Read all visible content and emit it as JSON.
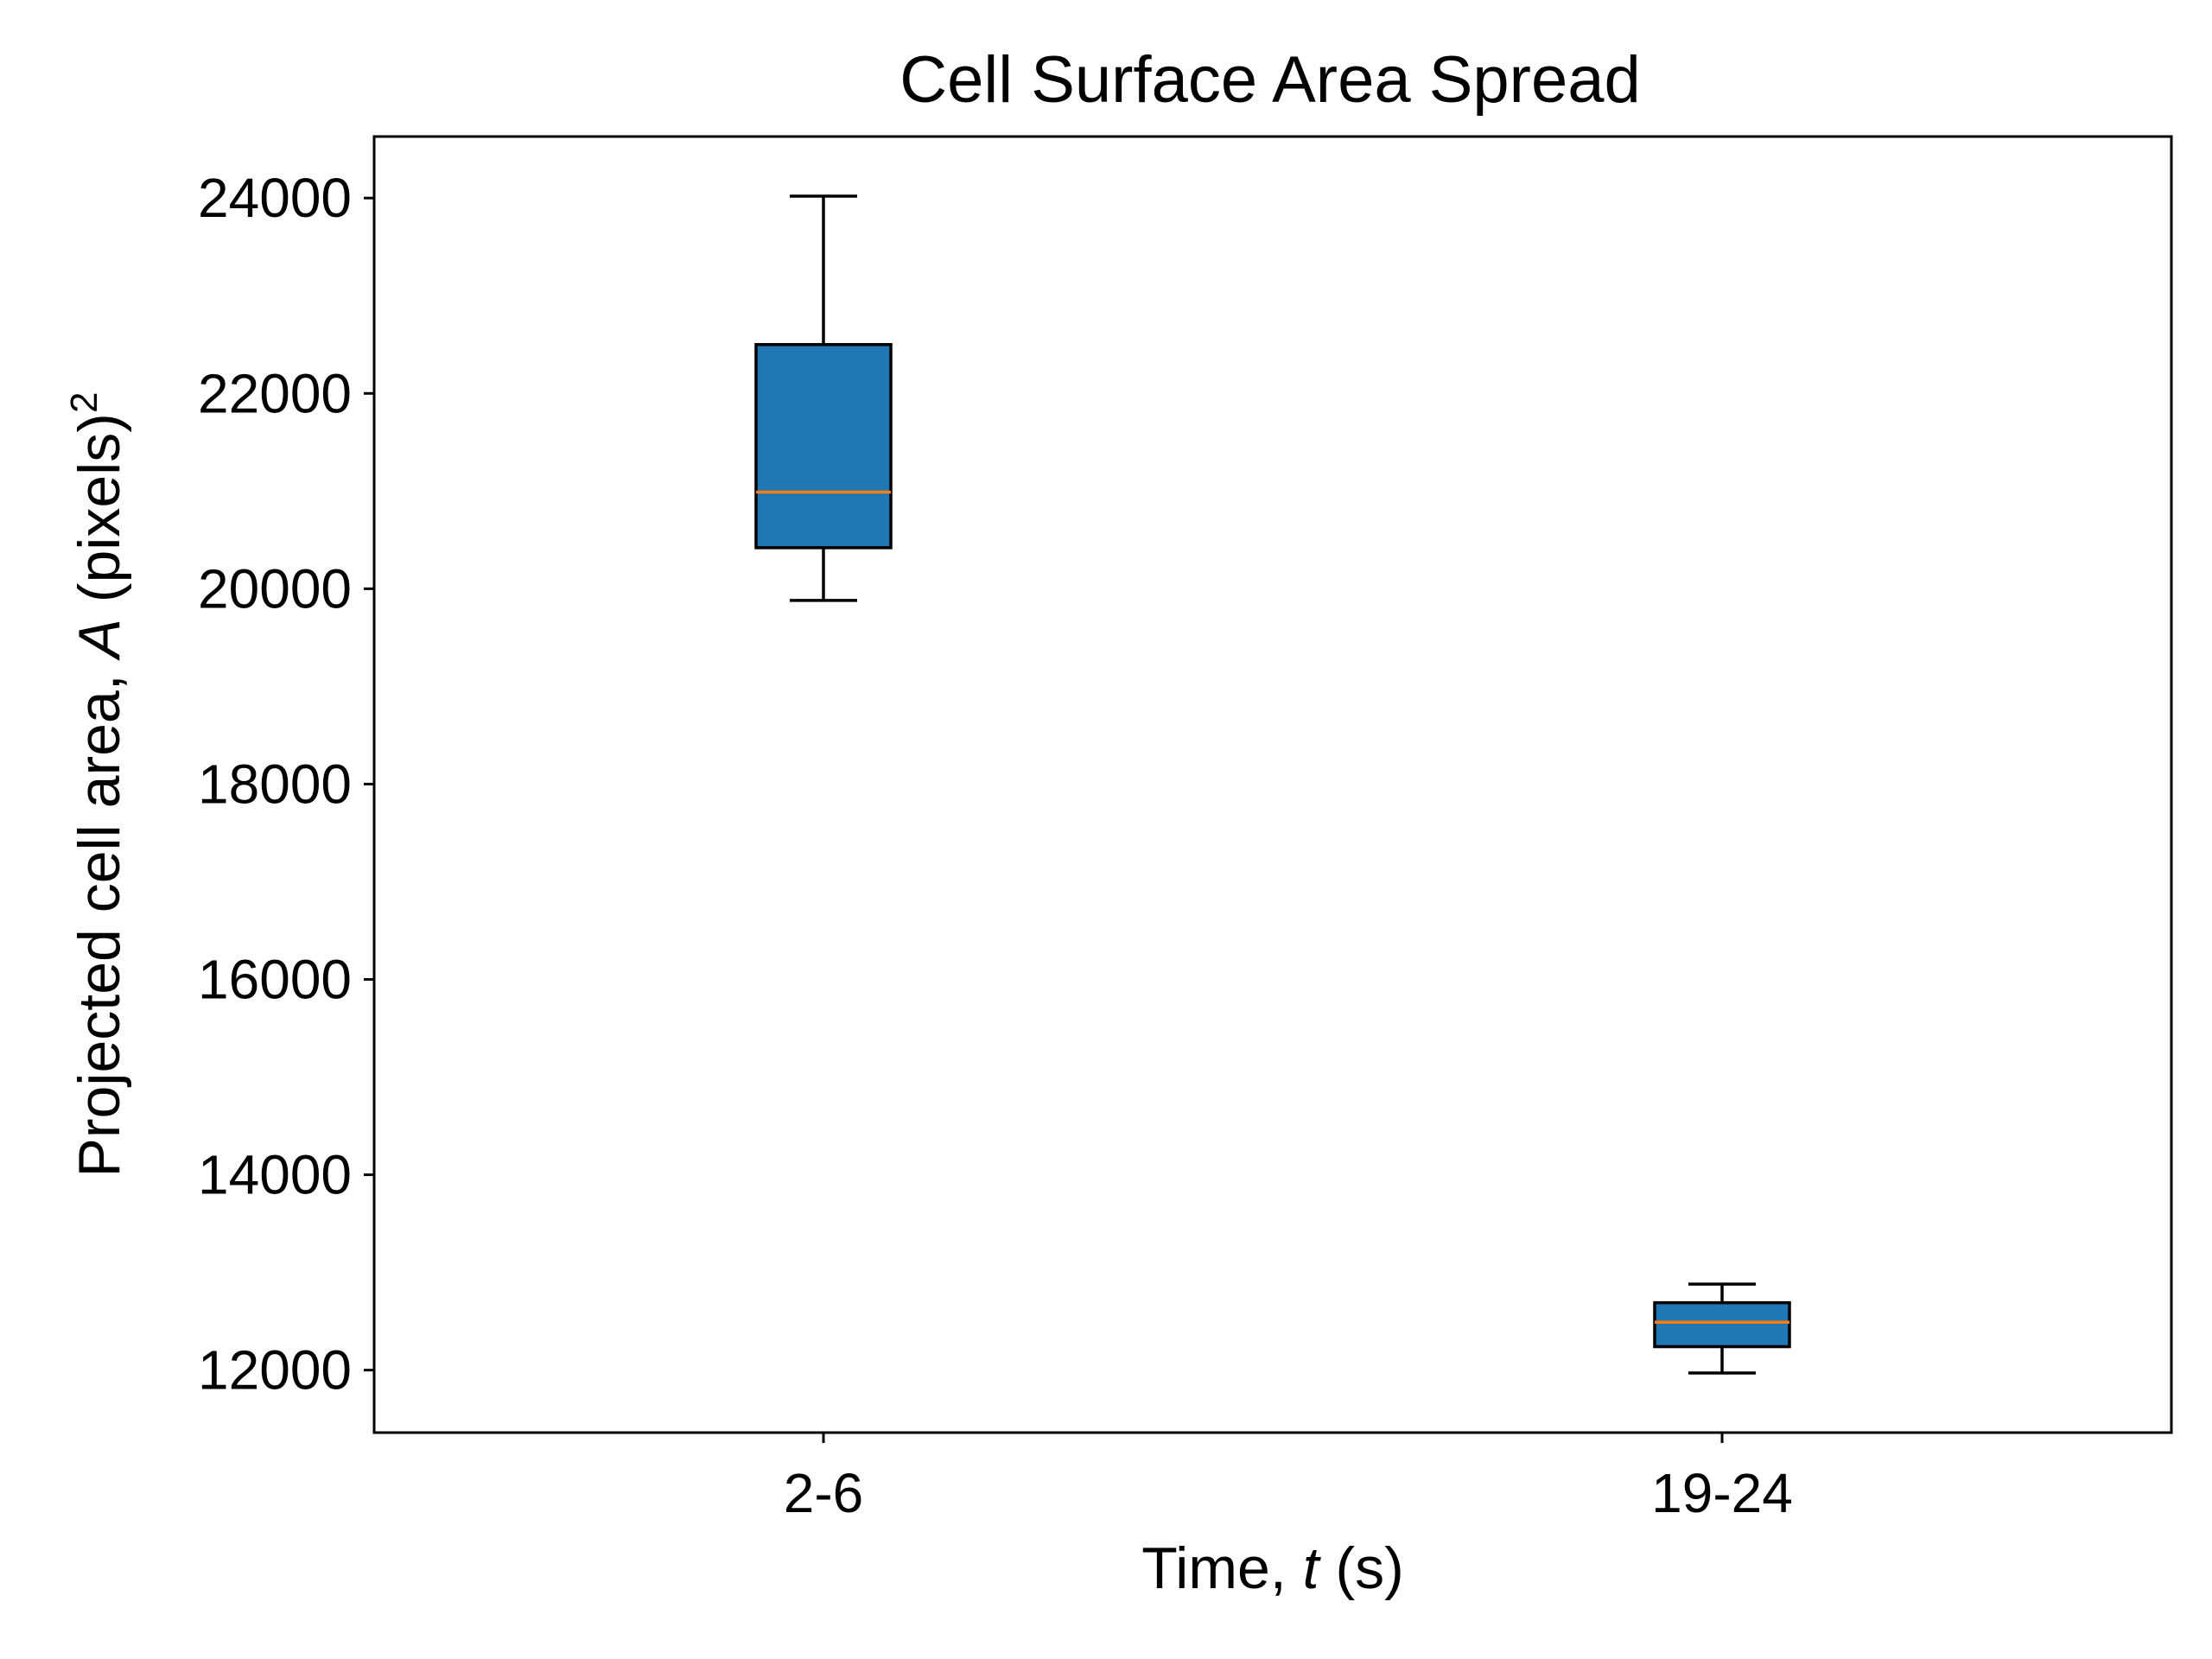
{
  "chart_data": {
    "type": "box",
    "title": "Cell Surface Area Spread",
    "xlabel": {
      "prefix": "Time, ",
      "var": "t",
      "suffix": " (s)"
    },
    "ylabel": {
      "prefix": "Projected cell area, ",
      "var": "A",
      "suffix": " (pixels)",
      "sup": "2"
    },
    "categories": [
      "2-6",
      "19-24"
    ],
    "boxes": [
      {
        "category": "2-6",
        "whisker_low": 19880,
        "q1": 20420,
        "median": 20990,
        "q3": 22500,
        "whisker_high": 24020
      },
      {
        "category": "19-24",
        "whisker_low": 11970,
        "q1": 12240,
        "median": 12490,
        "q3": 12690,
        "whisker_high": 12880
      }
    ],
    "yticks": [
      12000,
      14000,
      16000,
      18000,
      20000,
      22000,
      24000
    ],
    "ylim": [
      11360,
      24630
    ],
    "grid": false,
    "colors": {
      "box_fill": "#1f77b4",
      "median": "#ff7f0e",
      "edge": "#000000"
    }
  }
}
